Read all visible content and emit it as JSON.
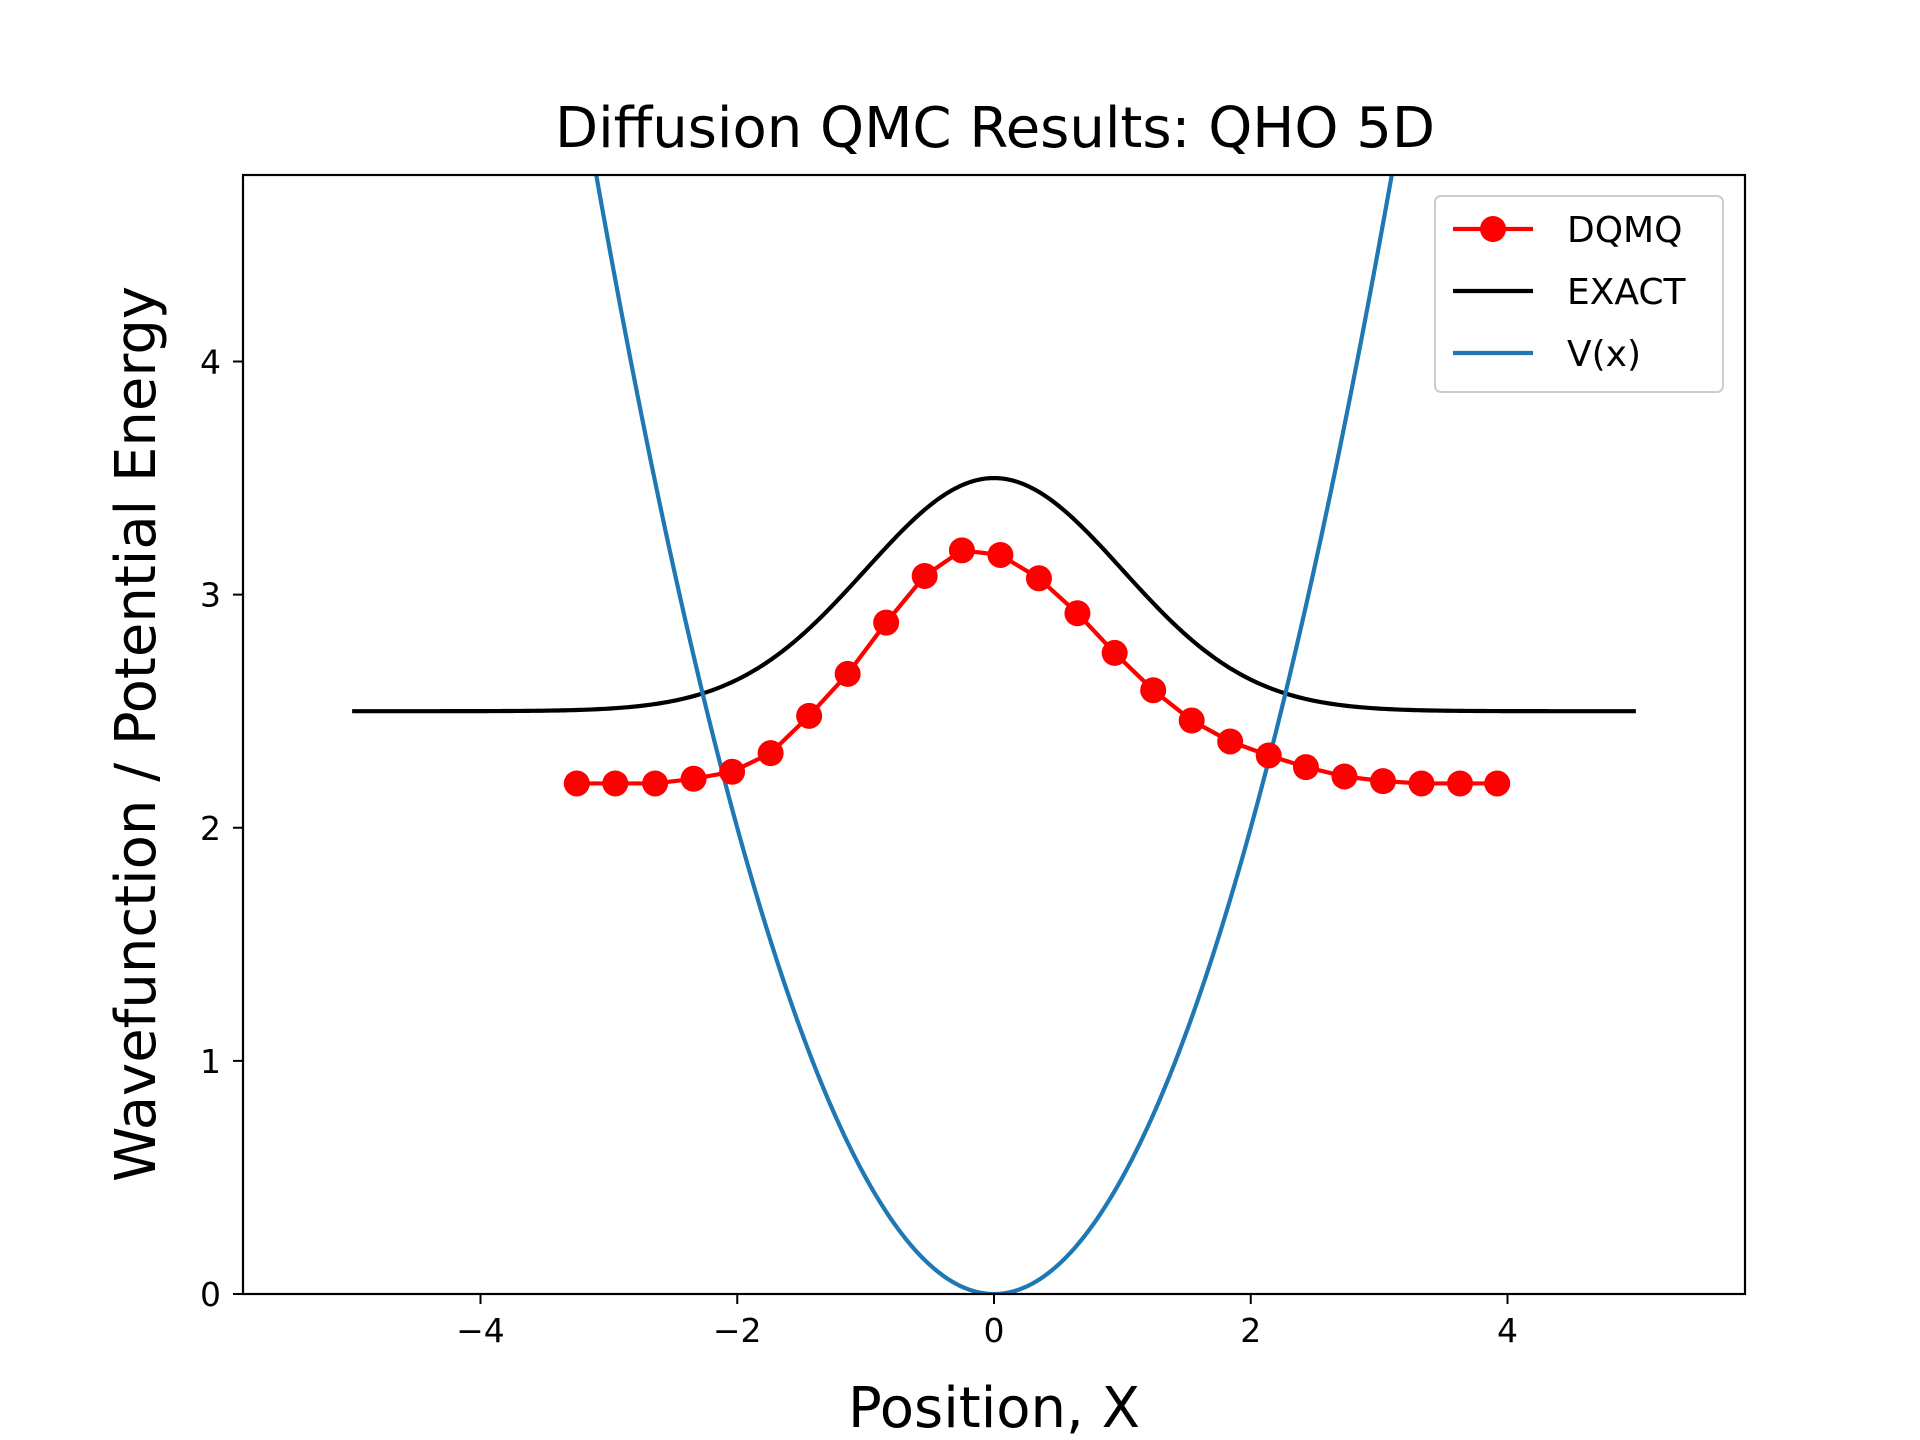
{
  "chart_data": {
    "type": "line",
    "title": "Diffusion QMC Results: QHO 5D",
    "xlabel": "Position, X",
    "ylabel": "Wavefunction / Potential Energy",
    "xlim": [
      -5.85,
      5.85
    ],
    "ylim": [
      0,
      4.8
    ],
    "xticks": [
      -4,
      -2,
      0,
      2,
      4
    ],
    "xtick_labels": [
      "−4",
      "−2",
      "0",
      "2",
      "4"
    ],
    "yticks": [
      0,
      1,
      2,
      3,
      4
    ],
    "ytick_labels": [
      "0",
      "1",
      "2",
      "3",
      "4"
    ],
    "grid": false,
    "legend_position": "top-right",
    "series": [
      {
        "name": "DQMQ",
        "color": "#ff0000",
        "style": "line-with-markers",
        "x": [
          -3.25,
          -2.95,
          -2.64,
          -2.34,
          -2.04,
          -1.74,
          -1.44,
          -1.14,
          -0.84,
          -0.54,
          -0.25,
          0.05,
          0.35,
          0.65,
          0.94,
          1.24,
          1.54,
          1.84,
          2.14,
          2.43,
          2.73,
          3.03,
          3.33,
          3.63,
          3.92
        ],
        "y": [
          2.19,
          2.19,
          2.19,
          2.21,
          2.24,
          2.32,
          2.48,
          2.66,
          2.88,
          3.08,
          3.19,
          3.17,
          3.07,
          2.92,
          2.75,
          2.59,
          2.46,
          2.37,
          2.31,
          2.26,
          2.22,
          2.2,
          2.19,
          2.19,
          2.19
        ]
      },
      {
        "name": "EXACT",
        "color": "#000000",
        "style": "line",
        "function": "2.5 + exp(-x^2/2)",
        "x_range": [
          -5,
          5
        ]
      },
      {
        "name": "V(x)",
        "color": "#1f77b4",
        "style": "line",
        "function": "0.5 * x^2",
        "x_range": [
          -5,
          5
        ]
      }
    ]
  }
}
